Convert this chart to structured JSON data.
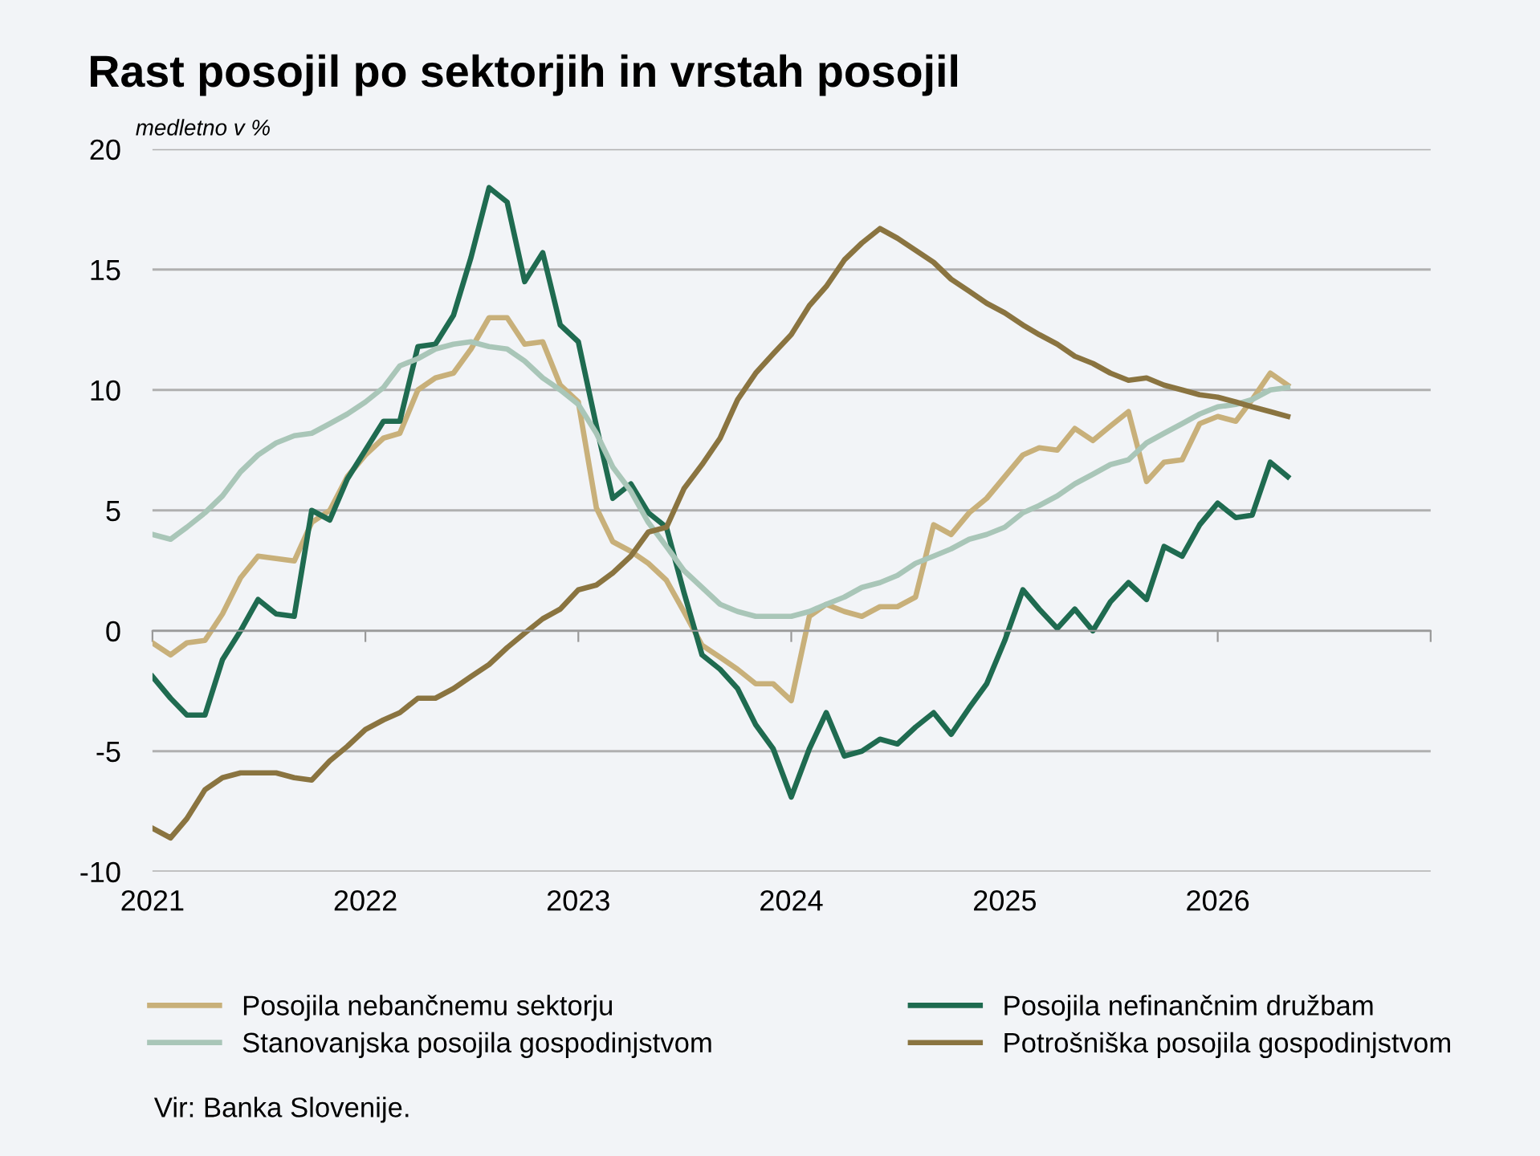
{
  "chart_data": {
    "type": "line",
    "title": "Rast posojil po sektorjih in vrstah posojil",
    "ylabel": "medletno v %",
    "x": [
      "2021-01",
      "2021-02",
      "2021-03",
      "2021-04",
      "2021-05",
      "2021-06",
      "2021-07",
      "2021-08",
      "2021-09",
      "2021-10",
      "2021-11",
      "2021-12",
      "2022-01",
      "2022-02",
      "2022-03",
      "2022-04",
      "2022-05",
      "2022-06",
      "2022-07",
      "2022-08",
      "2022-09",
      "2022-10",
      "2022-11",
      "2022-12",
      "2023-01",
      "2023-02",
      "2023-03",
      "2023-04",
      "2023-05",
      "2023-06",
      "2023-07",
      "2023-08",
      "2023-09",
      "2023-10",
      "2023-11",
      "2023-12",
      "2024-01",
      "2024-02",
      "2024-03",
      "2024-04",
      "2024-05",
      "2024-06",
      "2024-07",
      "2024-08",
      "2024-09",
      "2024-10",
      "2024-11",
      "2024-12",
      "2025-01",
      "2025-02",
      "2025-03",
      "2025-04",
      "2025-05",
      "2025-06",
      "2025-07",
      "2025-08",
      "2025-09",
      "2025-10",
      "2025-11",
      "2025-12",
      "2026-01",
      "2026-02",
      "2026-03",
      "2026-04",
      "2026-05"
    ],
    "series": [
      {
        "name": "Posojila nebančnemu sektorju",
        "color": "#c8b07a",
        "values": [
          -0.5,
          -1.0,
          -0.5,
          -0.4,
          0.7,
          2.2,
          3.1,
          3.0,
          2.9,
          4.5,
          5.0,
          6.4,
          7.3,
          8.0,
          8.2,
          10.0,
          10.5,
          10.7,
          11.7,
          13.0,
          13.0,
          11.9,
          12.0,
          10.2,
          9.5,
          5.1,
          3.7,
          3.3,
          2.8,
          2.1,
          0.8,
          -0.6,
          -1.1,
          -1.6,
          -2.2,
          -2.2,
          -2.9,
          0.6,
          1.1,
          0.8,
          0.6,
          1.0,
          1.0,
          1.4,
          4.4,
          4.0,
          4.9,
          5.5,
          6.4,
          7.3,
          7.6,
          7.5,
          8.4,
          7.9,
          8.5,
          9.1,
          6.2,
          7.0,
          7.1,
          8.6,
          8.9,
          8.7,
          9.6,
          10.7,
          10.2
        ]
      },
      {
        "name": "Posojila nefinančnim družbam",
        "color": "#1f6b50",
        "values": [
          -1.9,
          -2.8,
          -3.5,
          -3.5,
          -1.2,
          0.0,
          1.3,
          0.7,
          0.6,
          5.0,
          4.6,
          6.3,
          7.5,
          8.7,
          8.7,
          11.8,
          11.9,
          13.1,
          15.5,
          18.4,
          17.8,
          14.5,
          15.7,
          12.7,
          12.0,
          8.5,
          5.5,
          6.1,
          4.9,
          4.3,
          1.6,
          -1.0,
          -1.6,
          -2.4,
          -3.9,
          -4.9,
          -6.9,
          -4.9,
          -3.4,
          -5.2,
          -5.0,
          -4.5,
          -4.7,
          -4.0,
          -3.4,
          -4.3,
          -3.2,
          -2.2,
          -0.4,
          1.7,
          0.9,
          0.1,
          0.9,
          0.0,
          1.2,
          2.0,
          1.3,
          3.5,
          3.1,
          4.4,
          5.3,
          4.7,
          4.8,
          7.0,
          6.4
        ]
      },
      {
        "name": "Stanovanjska posojila gospodinjstvom",
        "color": "#a9c6b8",
        "values": [
          4.0,
          3.8,
          4.3,
          4.9,
          5.6,
          6.6,
          7.3,
          7.8,
          8.1,
          8.2,
          8.6,
          9.0,
          9.5,
          10.1,
          11.0,
          11.3,
          11.7,
          11.9,
          12.0,
          11.8,
          11.7,
          11.2,
          10.5,
          10.0,
          9.4,
          8.2,
          6.8,
          5.8,
          4.5,
          3.5,
          2.5,
          1.8,
          1.1,
          0.8,
          0.6,
          0.6,
          0.6,
          0.8,
          1.1,
          1.4,
          1.8,
          2.0,
          2.3,
          2.8,
          3.1,
          3.4,
          3.8,
          4.0,
          4.3,
          4.9,
          5.2,
          5.6,
          6.1,
          6.5,
          6.9,
          7.1,
          7.8,
          8.2,
          8.6,
          9.0,
          9.3,
          9.4,
          9.6,
          10.0,
          10.1
        ]
      },
      {
        "name": "Potrošniška posojila gospodinjstvom",
        "color": "#8a7440",
        "values": [
          -8.2,
          -8.6,
          -7.8,
          -6.6,
          -6.1,
          -5.9,
          -5.9,
          -5.9,
          -6.1,
          -6.2,
          -5.4,
          -4.8,
          -4.1,
          -3.7,
          -3.4,
          -2.8,
          -2.8,
          -2.4,
          -1.9,
          -1.4,
          -0.7,
          -0.1,
          0.5,
          0.9,
          1.7,
          1.9,
          2.4,
          3.1,
          4.1,
          4.3,
          5.9,
          6.9,
          8.0,
          9.6,
          10.7,
          11.5,
          12.3,
          13.5,
          14.3,
          15.4,
          16.1,
          16.7,
          16.3,
          15.8,
          15.3,
          14.6,
          14.1,
          13.6,
          13.2,
          12.7,
          12.3,
          11.9,
          11.4,
          11.1,
          10.7,
          10.4,
          10.5,
          10.2,
          10.0,
          9.8,
          9.7,
          9.5,
          9.3,
          9.1,
          8.9
        ]
      }
    ],
    "xlim": [
      "2021-01",
      "2027-01"
    ],
    "xticks": [
      {
        "value": "2021-01",
        "label": "2021"
      },
      {
        "value": "2022-01",
        "label": "2022"
      },
      {
        "value": "2023-01",
        "label": "2023"
      },
      {
        "value": "2024-01",
        "label": "2024"
      },
      {
        "value": "2025-01",
        "label": "2025"
      },
      {
        "value": "2026-01",
        "label": "2026"
      },
      {
        "value": "2027-01",
        "label": null
      }
    ],
    "ylim": [
      -10,
      20
    ],
    "yticks": [
      -10,
      -5,
      0,
      5,
      10,
      15,
      20
    ],
    "grid": "y",
    "legend": "bottom",
    "marker": "none",
    "line_style": "solid",
    "annotations": [
      "Vir: Banka Slovenije."
    ]
  }
}
